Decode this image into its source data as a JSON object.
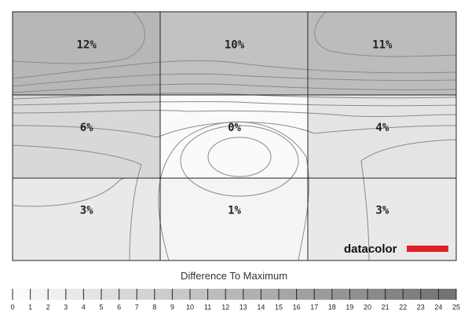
{
  "chart_data": {
    "type": "heatmap",
    "title": "Difference To Maximum",
    "logo": "datacolor",
    "values": [
      [
        12,
        10,
        11
      ],
      [
        6,
        0,
        4
      ],
      [
        3,
        1,
        3
      ]
    ],
    "value_labels": [
      [
        "12%",
        "10%",
        "11%"
      ],
      [
        "6%",
        "0%",
        "4%"
      ],
      [
        "3%",
        "1%",
        "3%"
      ]
    ],
    "scale_lim": [
      0,
      25
    ],
    "scale_ticks": [
      0,
      1,
      2,
      3,
      4,
      5,
      6,
      7,
      8,
      9,
      10,
      11,
      12,
      13,
      14,
      15,
      16,
      17,
      18,
      19,
      20,
      21,
      22,
      23,
      24,
      25
    ]
  }
}
